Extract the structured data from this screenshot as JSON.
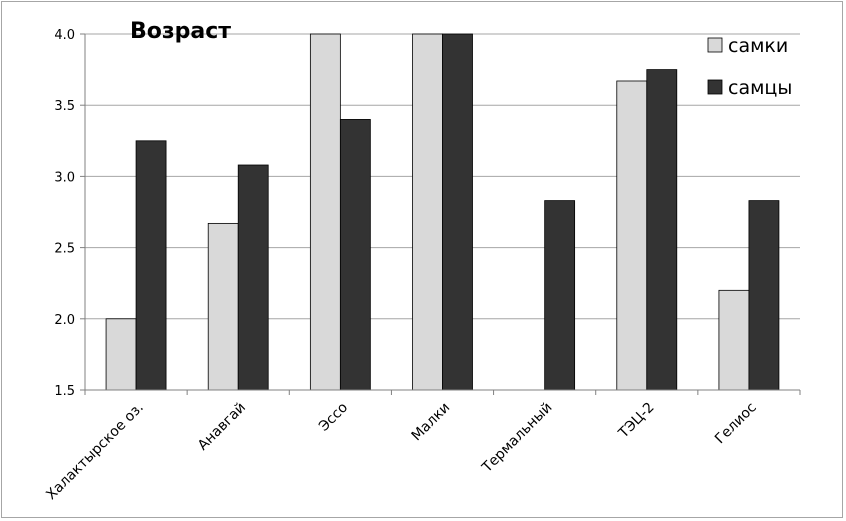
{
  "chart_data": {
    "type": "bar",
    "title": "Возраст",
    "xlabel": "",
    "ylabel": "",
    "categories": [
      "Халактырское оз.",
      "Анавгай",
      "Эссо",
      "Малки",
      "Термальный",
      "ТЭЦ-2",
      "Гелиос"
    ],
    "series": [
      {
        "name": "самки",
        "values": [
          2.0,
          2.67,
          4.0,
          4.0,
          null,
          3.67,
          2.2
        ],
        "color": "#d9d9d9"
      },
      {
        "name": "самцы",
        "values": [
          3.25,
          3.08,
          3.4,
          4.0,
          2.83,
          3.75,
          2.83
        ],
        "color": "#333333"
      }
    ],
    "ylim": [
      1.5,
      4.0
    ],
    "yticks": [
      "1.5",
      "2.0",
      "2.5",
      "3.0",
      "3.5",
      "4.0"
    ],
    "grid": true,
    "legend_position": "top-right"
  }
}
